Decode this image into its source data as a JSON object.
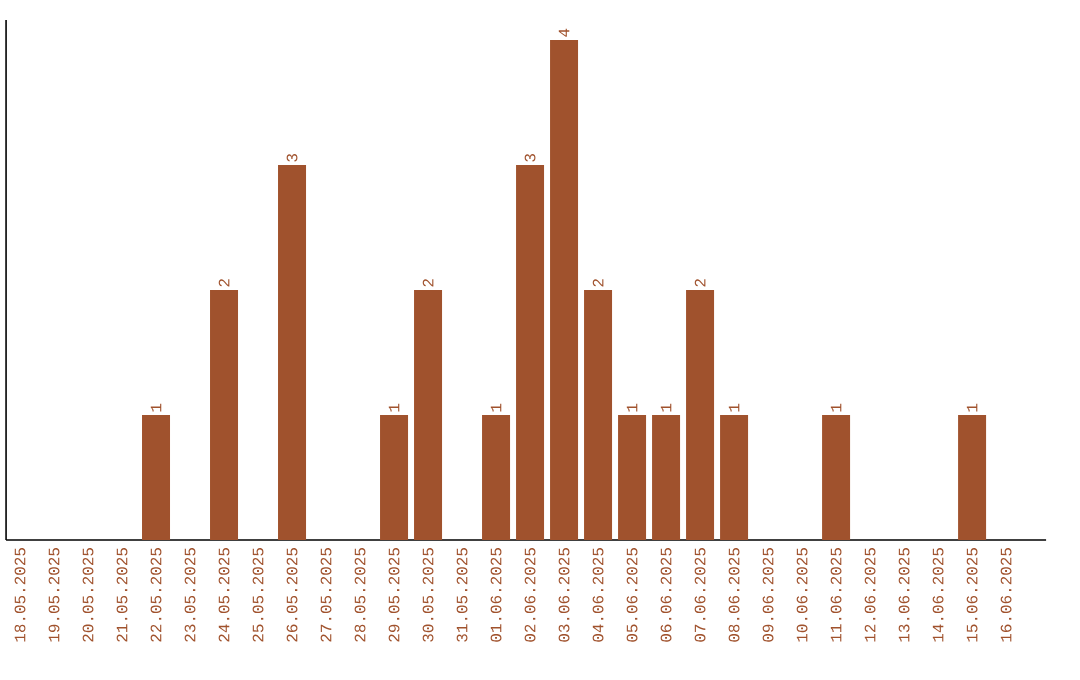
{
  "chart_data": {
    "type": "bar",
    "categories": [
      "18.05.2025",
      "19.05.2025",
      "20.05.2025",
      "21.05.2025",
      "22.05.2025",
      "23.05.2025",
      "24.05.2025",
      "25.05.2025",
      "26.05.2025",
      "27.05.2025",
      "28.05.2025",
      "29.05.2025",
      "30.05.2025",
      "31.05.2025",
      "01.06.2025",
      "02.06.2025",
      "03.06.2025",
      "04.06.2025",
      "05.06.2025",
      "06.06.2025",
      "07.06.2025",
      "08.06.2025",
      "09.06.2025",
      "10.06.2025",
      "11.06.2025",
      "12.06.2025",
      "13.06.2025",
      "14.06.2025",
      "15.06.2025",
      "16.06.2025"
    ],
    "values": [
      0,
      0,
      0,
      0,
      1,
      0,
      2,
      0,
      3,
      0,
      0,
      1,
      2,
      0,
      1,
      3,
      4,
      2,
      1,
      1,
      2,
      1,
      0,
      0,
      1,
      0,
      0,
      0,
      1,
      0
    ],
    "value_labels": [
      null,
      null,
      null,
      null,
      "1",
      null,
      "2",
      null,
      "3",
      null,
      null,
      "1",
      "2",
      null,
      "1",
      "3",
      "4",
      "2",
      "1",
      "1",
      "2",
      "1",
      null,
      null,
      "1",
      null,
      null,
      null,
      "1",
      null
    ],
    "color": "#a0522d"
  }
}
